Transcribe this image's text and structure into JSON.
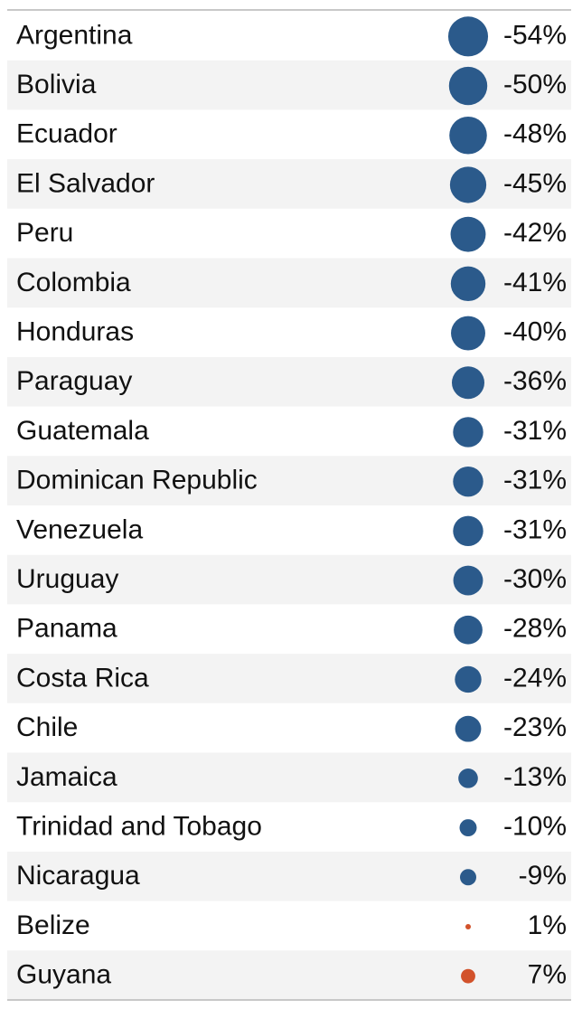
{
  "chart_data": {
    "type": "dot-table",
    "categories": [
      "Argentina",
      "Bolivia",
      "Ecuador",
      "El Salvador",
      "Peru",
      "Colombia",
      "Honduras",
      "Paraguay",
      "Guatemala",
      "Dominican Republic",
      "Venezuela",
      "Uruguay",
      "Panama",
      "Costa Rica",
      "Chile",
      "Jamaica",
      "Trinidad and Tobago",
      "Nicaragua",
      "Belize",
      "Guyana"
    ],
    "values": [
      -54,
      -50,
      -48,
      -45,
      -42,
      -41,
      -40,
      -36,
      -31,
      -31,
      -31,
      -30,
      -28,
      -24,
      -23,
      -13,
      -10,
      -9,
      1,
      7
    ],
    "value_labels": [
      "-54%",
      "-50%",
      "-48%",
      "-45%",
      "-42%",
      "-41%",
      "-40%",
      "-36%",
      "-31%",
      "-31%",
      "-31%",
      "-30%",
      "-28%",
      "-24%",
      "-23%",
      "-13%",
      "-10%",
      "-9%",
      "1%",
      "7%"
    ],
    "negative_color": "#2b5a8b",
    "positive_color": "#d2522b"
  }
}
